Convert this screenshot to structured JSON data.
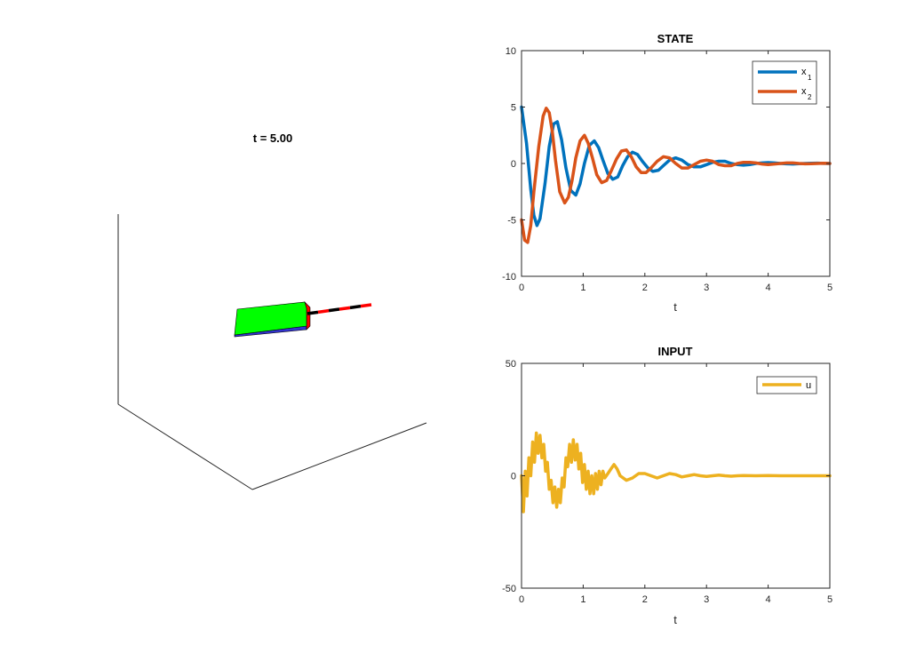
{
  "scene": {
    "title": "t = 5.00",
    "colors": {
      "body_top": "#00ff00",
      "body_side": "#ff0000",
      "body_bottom": "#3333cc",
      "pole_dark": "#000000",
      "pole_light": "#ff0000"
    }
  },
  "chart_data": [
    {
      "type": "line",
      "title": "STATE",
      "xlabel": "t",
      "ylabel": "",
      "xlim": [
        0,
        5
      ],
      "ylim": [
        -10,
        10
      ],
      "xticks": [
        0,
        1,
        2,
        3,
        4,
        5
      ],
      "yticks": [
        -10,
        -5,
        0,
        5,
        10
      ],
      "grid": false,
      "legend_position": "top-right",
      "series": [
        {
          "name": "x",
          "name_sub": "1",
          "color": "#0072bd",
          "x": [
            0.0,
            0.08,
            0.15,
            0.2,
            0.25,
            0.3,
            0.38,
            0.45,
            0.52,
            0.58,
            0.65,
            0.72,
            0.8,
            0.88,
            0.95,
            1.02,
            1.1,
            1.18,
            1.25,
            1.32,
            1.4,
            1.48,
            1.56,
            1.64,
            1.72,
            1.8,
            1.88,
            1.96,
            2.05,
            2.13,
            2.22,
            2.3,
            2.4,
            2.5,
            2.6,
            2.7,
            2.8,
            2.9,
            3.0,
            3.1,
            3.2,
            3.3,
            3.4,
            3.5,
            3.6,
            3.7,
            3.8,
            3.9,
            4.0,
            4.1,
            4.2,
            4.3,
            4.4,
            4.5,
            4.6,
            4.7,
            4.8,
            4.9,
            5.0
          ],
          "y": [
            5.0,
            1.8,
            -2.3,
            -4.6,
            -5.5,
            -4.9,
            -1.8,
            1.5,
            3.5,
            3.7,
            2.1,
            -0.4,
            -2.4,
            -2.8,
            -1.8,
            0.0,
            1.6,
            2.0,
            1.4,
            0.3,
            -0.9,
            -1.4,
            -1.2,
            -0.2,
            0.6,
            1.0,
            0.8,
            0.2,
            -0.4,
            -0.7,
            -0.6,
            -0.2,
            0.3,
            0.5,
            0.3,
            -0.1,
            -0.3,
            -0.3,
            -0.1,
            0.1,
            0.2,
            0.2,
            0.0,
            -0.1,
            -0.15,
            -0.1,
            0.0,
            0.05,
            0.08,
            0.05,
            0.0,
            -0.03,
            -0.05,
            -0.02,
            0.0,
            0.02,
            0.03,
            0.01,
            0.0
          ]
        },
        {
          "name": "x",
          "name_sub": "2",
          "color": "#d95319",
          "x": [
            0.0,
            0.05,
            0.1,
            0.15,
            0.2,
            0.28,
            0.35,
            0.4,
            0.45,
            0.5,
            0.55,
            0.62,
            0.7,
            0.76,
            0.82,
            0.88,
            0.95,
            1.02,
            1.08,
            1.15,
            1.22,
            1.3,
            1.38,
            1.46,
            1.54,
            1.62,
            1.7,
            1.78,
            1.86,
            1.94,
            2.02,
            2.1,
            2.2,
            2.3,
            2.4,
            2.5,
            2.6,
            2.7,
            2.8,
            2.9,
            3.0,
            3.1,
            3.2,
            3.3,
            3.4,
            3.5,
            3.6,
            3.7,
            3.8,
            3.9,
            4.0,
            4.1,
            4.2,
            4.3,
            4.4,
            4.5,
            4.6,
            4.7,
            4.8,
            4.9,
            5.0
          ],
          "y": [
            -5.0,
            -6.8,
            -7.0,
            -5.5,
            -2.5,
            1.5,
            4.2,
            4.9,
            4.5,
            2.8,
            0.3,
            -2.5,
            -3.5,
            -3.0,
            -1.5,
            0.5,
            2.0,
            2.5,
            1.8,
            0.5,
            -1.0,
            -1.7,
            -1.5,
            -0.6,
            0.4,
            1.1,
            1.2,
            0.6,
            -0.3,
            -0.8,
            -0.8,
            -0.4,
            0.2,
            0.6,
            0.5,
            0.0,
            -0.4,
            -0.4,
            -0.1,
            0.2,
            0.3,
            0.2,
            -0.1,
            -0.2,
            -0.2,
            0.0,
            0.1,
            0.1,
            0.05,
            -0.05,
            -0.1,
            -0.05,
            0.0,
            0.05,
            0.05,
            0.0,
            -0.03,
            -0.02,
            0.0,
            0.02,
            0.0
          ]
        }
      ]
    },
    {
      "type": "line",
      "title": "INPUT",
      "xlabel": "t",
      "ylabel": "",
      "xlim": [
        0,
        5
      ],
      "ylim": [
        -50,
        50
      ],
      "xticks": [
        0,
        1,
        2,
        3,
        4,
        5
      ],
      "yticks": [
        -50,
        0,
        50
      ],
      "grid": false,
      "legend_position": "top-right",
      "series": [
        {
          "name": "u",
          "color": "#edb120",
          "x": [
            0.0,
            0.03,
            0.06,
            0.09,
            0.12,
            0.15,
            0.18,
            0.21,
            0.24,
            0.27,
            0.3,
            0.33,
            0.36,
            0.39,
            0.42,
            0.45,
            0.48,
            0.51,
            0.54,
            0.57,
            0.6,
            0.63,
            0.66,
            0.69,
            0.72,
            0.75,
            0.78,
            0.81,
            0.84,
            0.87,
            0.9,
            0.93,
            0.96,
            0.99,
            1.02,
            1.05,
            1.08,
            1.11,
            1.14,
            1.17,
            1.2,
            1.23,
            1.26,
            1.29,
            1.32,
            1.35,
            1.4,
            1.45,
            1.5,
            1.55,
            1.6,
            1.7,
            1.8,
            1.9,
            2.0,
            2.1,
            2.2,
            2.3,
            2.4,
            2.5,
            2.6,
            2.7,
            2.8,
            2.9,
            3.0,
            3.1,
            3.2,
            3.3,
            3.4,
            3.5,
            3.6,
            3.8,
            4.0,
            4.2,
            4.4,
            4.6,
            4.8,
            5.0
          ],
          "y": [
            0,
            -16,
            2,
            -9,
            8,
            0,
            15,
            6,
            19,
            10,
            18,
            8,
            14,
            2,
            6,
            -6,
            -2,
            -12,
            -5,
            -14,
            -6,
            -12,
            -1,
            -5,
            8,
            4,
            14,
            6,
            16,
            7,
            14,
            3,
            10,
            -3,
            5,
            -6,
            2,
            -8,
            0,
            -8,
            1,
            -6,
            2,
            -4,
            2,
            -1,
            1,
            3,
            5,
            3,
            0,
            -2,
            -1,
            1,
            1,
            0,
            -1,
            0,
            1,
            0.5,
            -0.5,
            0,
            0.5,
            0,
            -0.3,
            0,
            0.3,
            0,
            -0.2,
            0,
            0.1,
            0,
            0.1,
            0,
            0,
            0,
            0,
            0
          ]
        }
      ]
    }
  ]
}
